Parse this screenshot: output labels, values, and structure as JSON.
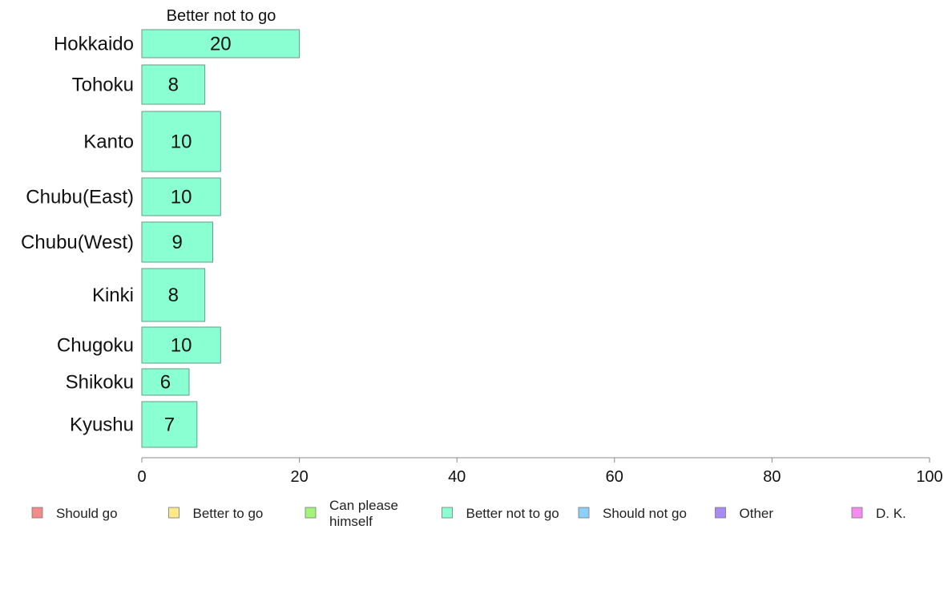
{
  "chart_data": {
    "type": "bar",
    "orientation": "horizontal",
    "title": "",
    "panel_title": "Better not to go",
    "categories": [
      "Hokkaido",
      "Tohoku",
      "Kanto",
      "Chubu(East)",
      "Chubu(West)",
      "Kinki",
      "Chugoku",
      "Shikoku",
      "Kyushu"
    ],
    "series": [
      {
        "name": "Better not to go",
        "color": "#8affd2",
        "values": [
          20,
          8,
          10,
          10,
          9,
          8,
          10,
          6,
          7
        ],
        "display_values": [
          20,
          8,
          10,
          10,
          9,
          8,
          10,
          6,
          7
        ]
      }
    ],
    "xlim": [
      0,
      100
    ],
    "xticks": [
      0,
      20,
      40,
      60,
      80,
      100
    ],
    "xlabel": "",
    "ylabel": "",
    "grid": false,
    "legend_position": "bottom",
    "legend": [
      {
        "lines": [
          "Should go"
        ],
        "color": "#f48a8a"
      },
      {
        "lines": [
          "Better to go"
        ],
        "color": "#fde98a"
      },
      {
        "lines": [
          "Can please",
          "himself"
        ],
        "color": "#a3f57a"
      },
      {
        "lines": [
          "Better not to go"
        ],
        "color": "#8affd2"
      },
      {
        "lines": [
          "Should not go"
        ],
        "color": "#8ad0f8"
      },
      {
        "lines": [
          "Other"
        ],
        "color": "#a78af5"
      },
      {
        "lines": [
          "D. K."
        ],
        "color": "#f58af0"
      }
    ]
  },
  "colors": {
    "bar_stroke": "#6a9a88",
    "axis": "#888888"
  }
}
